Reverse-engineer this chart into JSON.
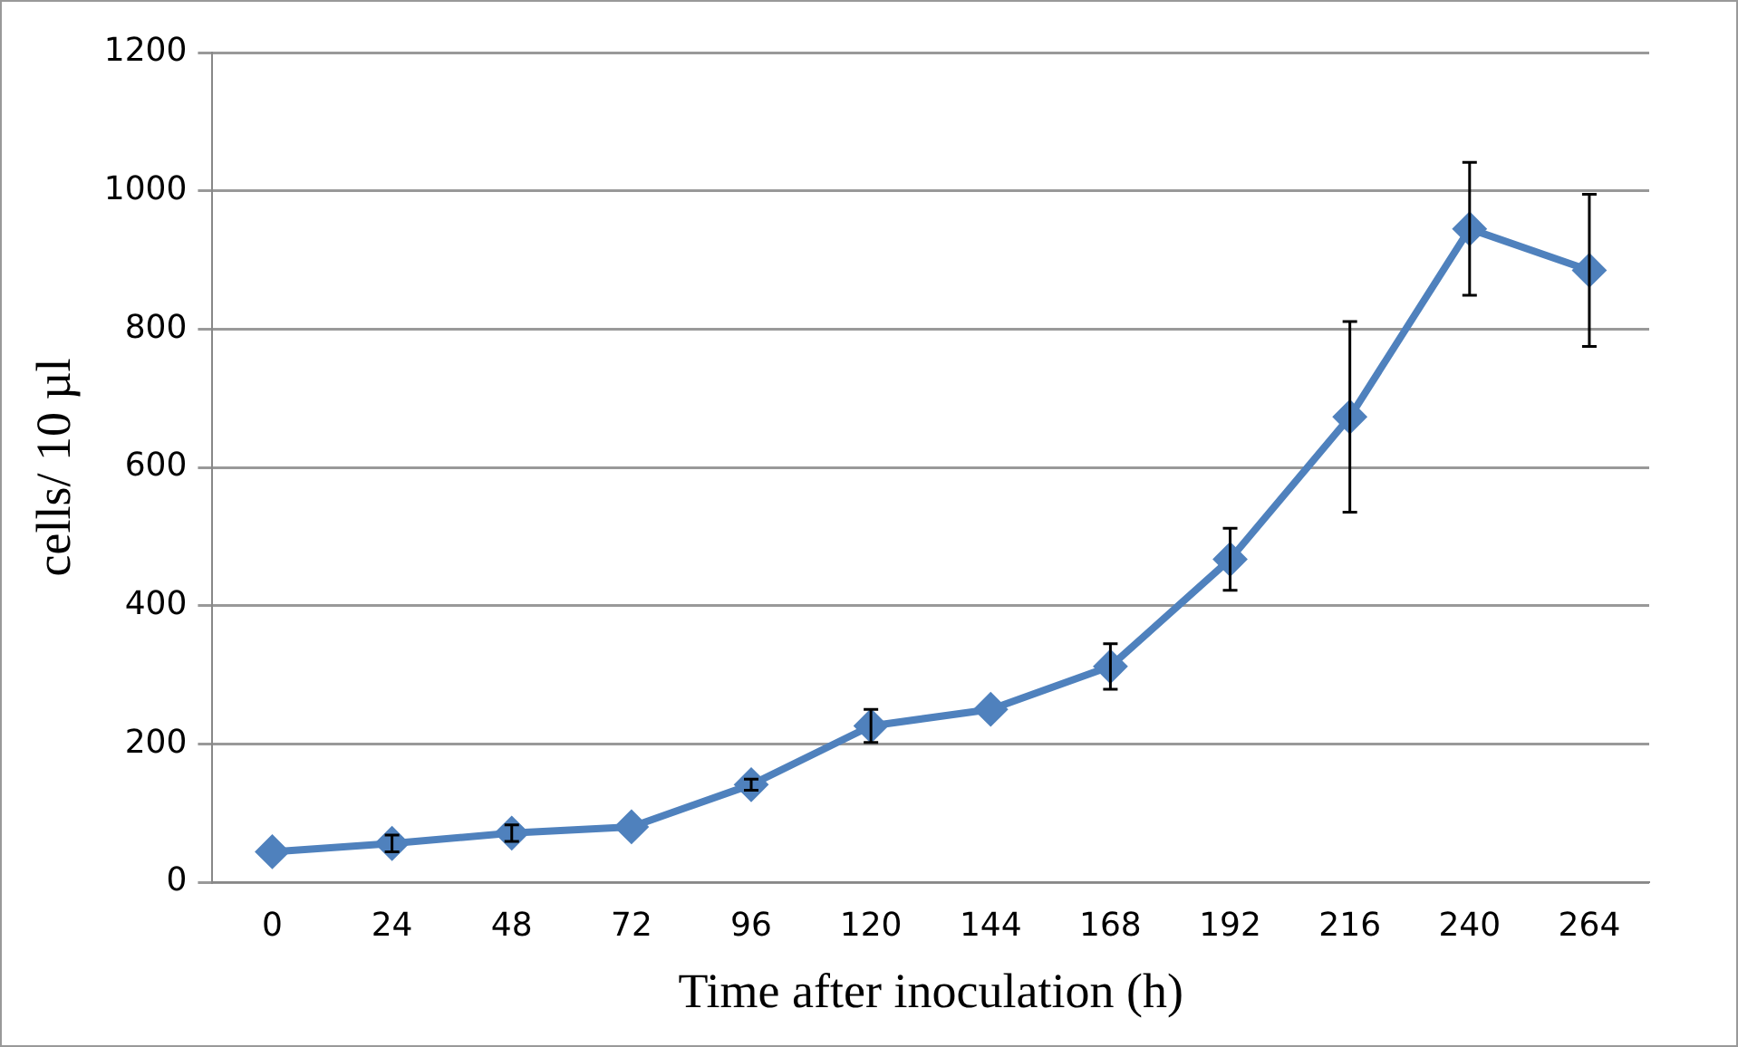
{
  "chart_data": {
    "type": "line",
    "xlabel": "Time after inoculation (h)",
    "ylabel": "cells/ 10 µl",
    "categories": [
      "0",
      "24",
      "48",
      "72",
      "96",
      "120",
      "144",
      "168",
      "192",
      "216",
      "240",
      "264"
    ],
    "series": [
      {
        "color": "#4f81bd",
        "values": [
          44,
          56,
          71,
          80,
          141,
          226,
          250,
          312,
          467,
          673,
          945,
          885
        ],
        "errors": [
          null,
          12,
          12,
          null,
          8,
          24,
          null,
          33,
          45,
          138,
          96,
          110
        ]
      }
    ],
    "ylim": [
      0,
      1200
    ],
    "yticks": [
      0,
      200,
      400,
      600,
      800,
      1000,
      1200
    ],
    "grid": "y",
    "legend": false,
    "marker": "diamond",
    "line_style": "solid"
  }
}
